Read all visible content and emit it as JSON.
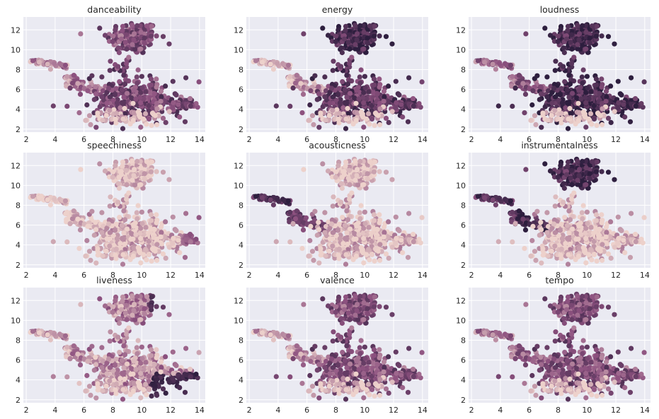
{
  "palette": {
    "background": "#eaeaf2",
    "grid": "#ffffff",
    "low": "#edd1cb",
    "high": "#2d1e3e"
  },
  "chart_data": [
    {
      "type": "scatter",
      "title": "danceability",
      "x_ticks": [
        "2",
        "4",
        "6",
        "8",
        "10",
        "12",
        "14"
      ],
      "y_ticks": [
        "2",
        "4",
        "6",
        "8",
        "10",
        "12"
      ],
      "xlim": [
        1.8,
        14.4
      ],
      "ylim": [
        1.7,
        13.3
      ],
      "grid": true,
      "color_pattern": "mixed",
      "trend": {
        "island": 0.55,
        "arm": 0.3,
        "body": 0.6,
        "base": 0.05
      }
    },
    {
      "type": "scatter",
      "title": "energy",
      "x_ticks": [
        "2",
        "4",
        "6",
        "8",
        "10",
        "12",
        "14"
      ],
      "y_ticks": [
        "2",
        "4",
        "6",
        "8",
        "10",
        "12"
      ],
      "xlim": [
        1.8,
        14.4
      ],
      "ylim": [
        1.7,
        13.3
      ],
      "grid": true,
      "color_pattern": "top-and-body-dark",
      "trend": {
        "island": 0.85,
        "arm": 0.15,
        "body": 0.7,
        "base": 0.05
      }
    },
    {
      "type": "scatter",
      "title": "loudness",
      "x_ticks": [
        "2",
        "4",
        "6",
        "8",
        "10",
        "12",
        "14"
      ],
      "y_ticks": [
        "2",
        "4",
        "6",
        "8",
        "10",
        "12"
      ],
      "xlim": [
        1.8,
        14.4
      ],
      "ylim": [
        1.7,
        13.3
      ],
      "grid": true,
      "color_pattern": "mostly-dark",
      "trend": {
        "island": 0.85,
        "arm": 0.45,
        "body": 0.85,
        "base": 0.0
      }
    },
    {
      "type": "scatter",
      "title": "speechiness",
      "x_ticks": [
        "2",
        "4",
        "6",
        "8",
        "10",
        "12",
        "14"
      ],
      "y_ticks": [
        "2",
        "4",
        "6",
        "8",
        "10",
        "12"
      ],
      "xlim": [
        1.8,
        14.4
      ],
      "ylim": [
        1.7,
        13.3
      ],
      "grid": true,
      "color_pattern": "mostly-light",
      "trend": {
        "island": 0.05,
        "arm": 0.02,
        "body": 0.1,
        "base": 0.02
      }
    },
    {
      "type": "scatter",
      "title": "acousticness",
      "x_ticks": [
        "2",
        "4",
        "6",
        "8",
        "10",
        "12",
        "14"
      ],
      "y_ticks": [
        "2",
        "4",
        "6",
        "8",
        "10",
        "12"
      ],
      "xlim": [
        1.8,
        14.4
      ],
      "ylim": [
        1.7,
        13.3
      ],
      "grid": true,
      "color_pattern": "arm-dark",
      "trend": {
        "island": 0.05,
        "arm": 0.85,
        "body": 0.1,
        "base": 0.05
      }
    },
    {
      "type": "scatter",
      "title": "instrumentalness",
      "x_ticks": [
        "2",
        "4",
        "6",
        "8",
        "10",
        "12",
        "14"
      ],
      "y_ticks": [
        "2",
        "4",
        "6",
        "8",
        "10",
        "12"
      ],
      "xlim": [
        1.8,
        14.4
      ],
      "ylim": [
        1.7,
        13.3
      ],
      "grid": true,
      "color_pattern": "island-and-arm-dark",
      "trend": {
        "island": 0.85,
        "arm": 0.8,
        "body": 0.08,
        "base": 0.02
      }
    },
    {
      "type": "scatter",
      "title": "liveness",
      "x_ticks": [
        "2",
        "4",
        "6",
        "8",
        "10",
        "12",
        "14"
      ],
      "y_ticks": [
        "2",
        "4",
        "6",
        "8",
        "10",
        "12"
      ],
      "xlim": [
        1.8,
        14.4
      ],
      "ylim": [
        1.7,
        13.3
      ],
      "grid": true,
      "color_pattern": "light-with-dark-right",
      "trend": {
        "island": 0.3,
        "arm": 0.2,
        "body": 0.25,
        "base": 0.05
      }
    },
    {
      "type": "scatter",
      "title": "valence",
      "x_ticks": [
        "2",
        "4",
        "6",
        "8",
        "10",
        "12",
        "14"
      ],
      "y_ticks": [
        "2",
        "4",
        "6",
        "8",
        "10",
        "12"
      ],
      "xlim": [
        1.8,
        14.4
      ],
      "ylim": [
        1.7,
        13.3
      ],
      "grid": true,
      "color_pattern": "mixed",
      "trend": {
        "island": 0.55,
        "arm": 0.2,
        "body": 0.55,
        "base": 0.05
      }
    },
    {
      "type": "scatter",
      "title": "tempo",
      "x_ticks": [
        "2",
        "4",
        "6",
        "8",
        "10",
        "12",
        "14"
      ],
      "y_ticks": [
        "2",
        "4",
        "6",
        "8",
        "10",
        "12"
      ],
      "xlim": [
        1.8,
        14.4
      ],
      "ylim": [
        1.7,
        13.3
      ],
      "grid": true,
      "color_pattern": "medium",
      "trend": {
        "island": 0.55,
        "arm": 0.4,
        "body": 0.55,
        "base": 0.05
      }
    }
  ]
}
